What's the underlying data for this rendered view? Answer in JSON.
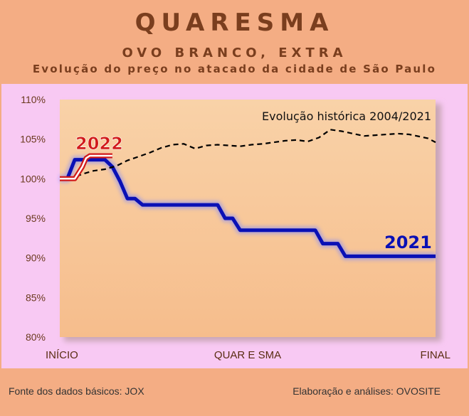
{
  "header": {
    "title": "QUARESMA",
    "subtitle": "OVO BRANCO, EXTRA",
    "description": "Evolução do preço no atacado da cidade de São Paulo"
  },
  "footer": {
    "source": "Fonte dos dados básicos: JOX",
    "credit": "Elaboração e análises: OVOSITE"
  },
  "colors": {
    "background": "#f4ad84",
    "chart_bg": "#f8c9f3",
    "plot_bg": "#f7c89a",
    "series_2021": "#0a10b5",
    "series_2022": "#d11a1a",
    "historical": "#000000"
  },
  "chart_data": {
    "type": "line",
    "ylim": [
      80,
      110
    ],
    "y_ticks": [
      "110%",
      "105%",
      "100%",
      "95%",
      "90%",
      "85%",
      "80%"
    ],
    "y_tick_values": [
      110,
      105,
      100,
      95,
      90,
      85,
      80
    ],
    "x_tick_labels": [
      "INÍCIO",
      "QUAR E SMA",
      "FINAL"
    ],
    "x_tick_values": [
      0,
      50,
      100
    ],
    "series": [
      {
        "name": "2021",
        "style": "solid",
        "x": [
          0,
          2,
          4,
          8,
          12,
          14,
          16,
          18,
          20,
          22,
          24,
          42,
          44,
          46,
          48,
          50,
          68,
          70,
          74,
          76,
          78,
          100
        ],
        "y": [
          100,
          100,
          102.4,
          102.4,
          102.4,
          101.5,
          99.7,
          97.5,
          97.5,
          96.7,
          96.7,
          96.7,
          95,
          95,
          93.5,
          93.5,
          93.5,
          91.8,
          91.8,
          90.2,
          90.2,
          90.2
        ]
      },
      {
        "name": "Evolução histórica 2004/2021",
        "style": "dashed",
        "x": [
          0,
          3,
          6,
          9,
          12,
          15,
          18,
          21,
          24,
          27,
          30,
          33,
          36,
          39,
          42,
          45,
          48,
          51,
          54,
          57,
          60,
          63,
          66,
          69,
          72,
          75,
          78,
          81,
          84,
          87,
          90,
          93,
          96,
          98,
          100
        ],
        "y": [
          100,
          100,
          100.6,
          101,
          101.2,
          101.6,
          102.3,
          102.8,
          103.3,
          103.9,
          104.3,
          104.4,
          103.8,
          104.2,
          104.3,
          104.2,
          104.1,
          104.3,
          104.4,
          104.6,
          104.8,
          104.9,
          104.7,
          105.2,
          106.2,
          106,
          105.7,
          105.4,
          105.5,
          105.6,
          105.7,
          105.6,
          105.3,
          105.1,
          104.6
        ]
      },
      {
        "name": "2022",
        "style": "solid",
        "x": [
          0,
          2,
          4,
          6,
          7,
          8,
          9,
          10,
          12,
          14
        ],
        "y": [
          100,
          100,
          100,
          101.5,
          102.6,
          102.9,
          102.9,
          102.9,
          102.9,
          102.9
        ]
      }
    ],
    "annotations": [
      {
        "text": "2022"
      },
      {
        "text": "2021"
      },
      {
        "text": "Evolução histórica 2004/2021"
      }
    ]
  }
}
